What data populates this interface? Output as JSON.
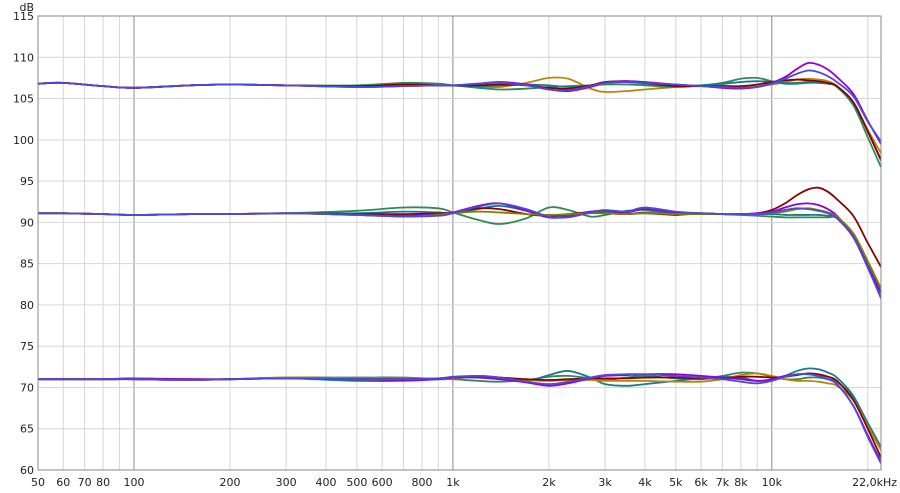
{
  "chart_data": {
    "type": "line",
    "title": "",
    "xlabel": "",
    "ylabel": "dB",
    "x_scale": "log",
    "xlim": [
      50,
      22000
    ],
    "ylim": [
      60,
      115
    ],
    "grid": true,
    "y_ticks": [
      60,
      65,
      70,
      75,
      80,
      85,
      90,
      95,
      100,
      105,
      110,
      115
    ],
    "x_ticks": [
      {
        "value": 50,
        "label": "50"
      },
      {
        "value": 60,
        "label": "60"
      },
      {
        "value": 70,
        "label": "70"
      },
      {
        "value": 80,
        "label": "80"
      },
      {
        "value": 100,
        "label": "100"
      },
      {
        "value": 200,
        "label": "200"
      },
      {
        "value": 300,
        "label": "300"
      },
      {
        "value": 400,
        "label": "400"
      },
      {
        "value": 500,
        "label": "500"
      },
      {
        "value": 600,
        "label": "600"
      },
      {
        "value": 800,
        "label": "800"
      },
      {
        "value": 1000,
        "label": "1k"
      },
      {
        "value": 2000,
        "label": "2k"
      },
      {
        "value": 3000,
        "label": "3k"
      },
      {
        "value": 4000,
        "label": "4k"
      },
      {
        "value": 5000,
        "label": "5k"
      },
      {
        "value": 6000,
        "label": "6k"
      },
      {
        "value": 7000,
        "label": "7k"
      },
      {
        "value": 8000,
        "label": "8k"
      },
      {
        "value": 10000,
        "label": "10k"
      },
      {
        "value": 22000,
        "label": "22,0kHz"
      }
    ],
    "x_gridlines": [
      50,
      60,
      70,
      80,
      90,
      100,
      200,
      300,
      400,
      500,
      600,
      700,
      800,
      900,
      1000,
      2000,
      3000,
      4000,
      5000,
      6000,
      7000,
      8000,
      9000,
      10000,
      20000,
      22000
    ],
    "x_major_gridlines": [
      100,
      1000,
      10000
    ],
    "x": [
      50,
      60,
      80,
      100,
      150,
      200,
      300,
      500,
      700,
      900,
      1000,
      1200,
      1400,
      1700,
      2000,
      2300,
      2700,
      3000,
      3500,
      4000,
      5000,
      6000,
      7000,
      8000,
      9000,
      10000,
      11000,
      12000,
      13000,
      14000,
      15000,
      16000,
      18000,
      20000,
      22000
    ],
    "groups": [
      {
        "series": [
          {
            "color": "#b8860b",
            "values": [
              106.8,
              106.9,
              106.5,
              106.3,
              106.6,
              106.7,
              106.6,
              106.5,
              106.8,
              106.7,
              106.6,
              106.4,
              106.4,
              106.9,
              107.5,
              107.4,
              106.2,
              105.8,
              105.9,
              106.1,
              106.4,
              106.6,
              106.6,
              106.4,
              106.5,
              106.7,
              107.0,
              107.3,
              107.4,
              107.3,
              107.1,
              106.5,
              104.5,
              101.2,
              98.4
            ]
          },
          {
            "color": "#2e8b57",
            "values": [
              106.8,
              106.9,
              106.5,
              106.3,
              106.6,
              106.7,
              106.6,
              106.6,
              106.9,
              106.8,
              106.6,
              106.3,
              106.1,
              106.2,
              106.4,
              106.5,
              106.6,
              106.7,
              106.7,
              106.6,
              106.4,
              106.6,
              106.9,
              107.4,
              107.5,
              107.1,
              106.9,
              106.9,
              107.0,
              106.9,
              106.8,
              106.4,
              104.2,
              100.3,
              96.7
            ]
          },
          {
            "color": "#1a7a8a",
            "values": [
              106.8,
              106.9,
              106.5,
              106.3,
              106.6,
              106.7,
              106.6,
              106.5,
              106.7,
              106.6,
              106.6,
              106.5,
              106.6,
              106.7,
              106.6,
              106.4,
              106.6,
              106.9,
              107.0,
              106.8,
              106.5,
              106.6,
              106.8,
              107.0,
              107.1,
              107.0,
              106.8,
              106.8,
              106.9,
              106.9,
              106.8,
              106.5,
              104.5,
              101.0,
              97.5
            ]
          },
          {
            "color": "#8b0000",
            "values": [
              106.8,
              106.9,
              106.5,
              106.3,
              106.6,
              106.7,
              106.6,
              106.5,
              106.7,
              106.6,
              106.6,
              106.6,
              106.7,
              106.6,
              106.3,
              106.2,
              106.6,
              107.0,
              107.1,
              106.9,
              106.5,
              106.5,
              106.5,
              106.5,
              106.7,
              107.0,
              107.2,
              107.3,
              107.2,
              107.1,
              106.9,
              106.5,
              104.6,
              101.0,
              97.6
            ]
          },
          {
            "color": "#9400d3",
            "values": [
              106.8,
              106.9,
              106.5,
              106.3,
              106.6,
              106.7,
              106.6,
              106.4,
              106.5,
              106.6,
              106.6,
              106.8,
              107.0,
              106.7,
              106.1,
              105.9,
              106.4,
              106.9,
              107.1,
              107.0,
              106.7,
              106.5,
              106.3,
              106.2,
              106.4,
              106.9,
              107.6,
              108.6,
              109.3,
              109.1,
              108.5,
              107.6,
              105.6,
              102.3,
              99.5
            ]
          },
          {
            "color": "#4b4bd4",
            "values": [
              106.8,
              106.9,
              106.5,
              106.3,
              106.6,
              106.7,
              106.6,
              106.4,
              106.5,
              106.6,
              106.6,
              106.8,
              106.9,
              106.6,
              106.1,
              106.0,
              106.5,
              106.9,
              107.0,
              106.9,
              106.7,
              106.5,
              106.4,
              106.3,
              106.4,
              106.8,
              107.4,
              108.0,
              108.4,
              108.2,
              107.7,
              107.0,
              105.3,
              102.2,
              99.8
            ]
          }
        ]
      },
      {
        "series": [
          {
            "color": "#2e8b57",
            "values": [
              91.1,
              91.1,
              91.0,
              90.9,
              91.0,
              91.0,
              91.1,
              91.4,
              91.8,
              91.7,
              91.2,
              90.3,
              89.8,
              90.5,
              91.8,
              91.5,
              90.7,
              90.9,
              91.4,
              91.5,
              91.1,
              91.1,
              91.0,
              90.9,
              90.8,
              90.7,
              90.6,
              90.6,
              90.6,
              90.6,
              90.6,
              90.5,
              88.5,
              85.0,
              81.5
            ]
          },
          {
            "color": "#1a7a8a",
            "values": [
              91.1,
              91.1,
              91.0,
              90.9,
              91.0,
              91.0,
              91.1,
              91.1,
              91.3,
              91.2,
              91.1,
              91.6,
              92.0,
              91.4,
              90.6,
              90.9,
              91.3,
              91.2,
              91.0,
              91.2,
              91.1,
              91.1,
              91.0,
              91.0,
              91.0,
              91.0,
              90.9,
              90.9,
              90.9,
              90.9,
              90.8,
              90.6,
              88.4,
              84.6,
              80.9
            ]
          },
          {
            "color": "#8b0000",
            "values": [
              91.1,
              91.1,
              91.0,
              90.9,
              91.0,
              91.0,
              91.1,
              91.0,
              91.0,
              91.1,
              91.2,
              91.7,
              91.6,
              91.0,
              90.8,
              91.0,
              91.2,
              91.1,
              91.0,
              91.1,
              90.9,
              91.1,
              91.0,
              91.0,
              91.1,
              91.5,
              92.3,
              93.3,
              94.0,
              94.2,
              93.7,
              92.8,
              90.8,
              87.5,
              84.6
            ]
          },
          {
            "color": "#9400d3",
            "values": [
              91.1,
              91.1,
              91.0,
              90.9,
              91.0,
              91.0,
              91.1,
              90.9,
              90.8,
              91.0,
              91.2,
              92.0,
              92.3,
              91.4,
              90.6,
              90.7,
              91.3,
              91.4,
              91.2,
              91.6,
              91.2,
              91.1,
              91.0,
              91.0,
              91.1,
              91.3,
              91.8,
              92.2,
              92.3,
              92.1,
              91.6,
              90.8,
              88.4,
              84.7,
              81.5
            ]
          },
          {
            "color": "#808000",
            "values": [
              91.1,
              91.1,
              91.0,
              90.9,
              91.0,
              91.0,
              91.1,
              90.9,
              90.7,
              90.9,
              91.1,
              91.3,
              91.2,
              91.0,
              90.9,
              91.0,
              91.1,
              91.1,
              91.0,
              91.1,
              91.0,
              91.0,
              91.0,
              91.0,
              91.0,
              91.1,
              91.3,
              91.6,
              91.7,
              91.5,
              91.2,
              90.7,
              88.7,
              85.3,
              82.0
            ]
          },
          {
            "color": "#4b4bd4",
            "values": [
              91.1,
              91.1,
              91.0,
              90.9,
              91.0,
              91.0,
              91.1,
              90.9,
              90.7,
              90.8,
              91.1,
              91.9,
              92.3,
              91.6,
              90.7,
              90.6,
              91.2,
              91.5,
              91.3,
              91.8,
              91.3,
              91.1,
              91.0,
              91.0,
              91.0,
              91.2,
              91.5,
              91.7,
              91.6,
              91.4,
              91.1,
              90.5,
              88.2,
              84.5,
              80.8
            ]
          }
        ]
      },
      {
        "series": [
          {
            "color": "#2e8b57",
            "values": [
              71.0,
              71.0,
              71.0,
              71.0,
              70.9,
              71.0,
              71.2,
              71.2,
              71.2,
              71.0,
              71.0,
              70.8,
              70.7,
              70.9,
              71.3,
              71.4,
              71.1,
              70.9,
              71.2,
              71.4,
              71.1,
              71.0,
              71.4,
              71.8,
              71.7,
              71.3,
              71.0,
              71.0,
              71.2,
              71.2,
              71.0,
              70.7,
              68.8,
              65.7,
              62.8
            ]
          },
          {
            "color": "#1a7a8a",
            "values": [
              71.0,
              71.0,
              71.0,
              71.0,
              70.9,
              71.0,
              71.1,
              70.8,
              70.8,
              71.0,
              71.2,
              71.4,
              71.2,
              70.8,
              71.5,
              72.0,
              71.2,
              70.4,
              70.2,
              70.4,
              70.8,
              71.1,
              71.3,
              71.2,
              70.8,
              70.9,
              71.4,
              72.0,
              72.3,
              72.2,
              71.8,
              71.2,
              69.0,
              65.6,
              62.5
            ]
          },
          {
            "color": "#b8860b",
            "values": [
              71.0,
              71.0,
              71.0,
              71.0,
              70.9,
              71.0,
              71.2,
              71.1,
              71.1,
              71.0,
              71.1,
              71.3,
              71.2,
              70.9,
              70.8,
              70.9,
              70.9,
              70.8,
              70.8,
              70.8,
              70.7,
              70.7,
              71.0,
              71.5,
              71.7,
              71.4,
              71.0,
              70.8,
              70.8,
              70.7,
              70.5,
              70.2,
              68.5,
              65.3,
              62.4
            ]
          },
          {
            "color": "#8b0000",
            "values": [
              71.0,
              71.0,
              71.0,
              71.0,
              71.0,
              71.0,
              71.1,
              71.0,
              71.0,
              71.1,
              71.2,
              71.3,
              71.2,
              71.0,
              70.9,
              71.0,
              71.1,
              71.1,
              71.1,
              71.2,
              71.2,
              71.1,
              71.1,
              71.3,
              71.3,
              71.2,
              71.3,
              71.5,
              71.7,
              71.6,
              71.3,
              70.8,
              68.5,
              65.0,
              61.5
            ]
          },
          {
            "color": "#9400d3",
            "values": [
              71.0,
              71.0,
              71.0,
              71.1,
              71.0,
              71.0,
              71.1,
              71.0,
              70.9,
              71.0,
              71.2,
              71.2,
              71.0,
              70.6,
              70.2,
              70.5,
              71.1,
              71.4,
              71.5,
              71.6,
              71.6,
              71.4,
              71.2,
              71.0,
              70.8,
              71.0,
              71.4,
              71.6,
              71.6,
              71.4,
              71.0,
              70.4,
              67.8,
              64.2,
              61.0
            ]
          },
          {
            "color": "#4b4bd4",
            "values": [
              71.0,
              71.0,
              71.0,
              71.0,
              70.9,
              71.0,
              71.1,
              71.0,
              71.0,
              71.1,
              71.3,
              71.4,
              71.2,
              70.7,
              70.4,
              70.7,
              71.2,
              71.5,
              71.6,
              71.6,
              71.4,
              71.2,
              71.0,
              70.7,
              70.5,
              70.8,
              71.3,
              71.6,
              71.6,
              71.4,
              71.0,
              70.4,
              67.8,
              64.0,
              60.8
            ]
          }
        ]
      }
    ]
  }
}
